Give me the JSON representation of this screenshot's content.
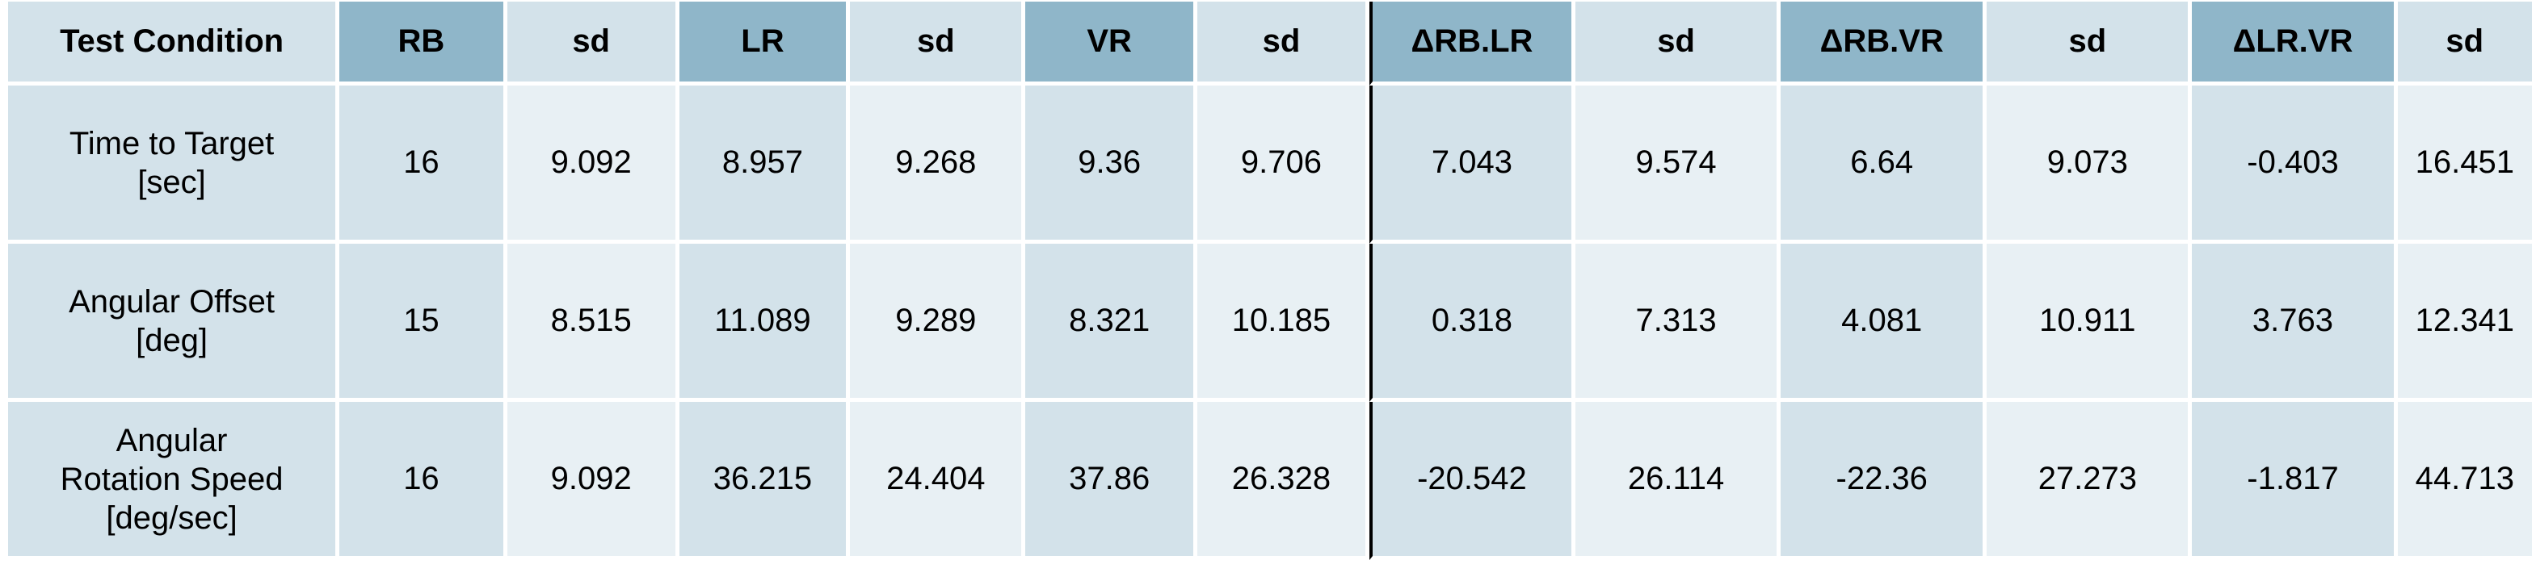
{
  "table": {
    "headers": [
      "Test Condition",
      "RB",
      "sd",
      "LR",
      "sd",
      "VR",
      "sd",
      "ΔRB.LR",
      "sd",
      "ΔRB.VR",
      "sd",
      "ΔLR.VR",
      "sd"
    ],
    "rows": [
      {
        "condition_line1": "Time to Target",
        "condition_line2": "[sec]",
        "condition_line3": "",
        "values": [
          "16",
          "9.092",
          "8.957",
          "9.268",
          "9.36",
          "9.706",
          "7.043",
          "9.574",
          "6.64",
          "9.073",
          "-0.403",
          "16.451"
        ]
      },
      {
        "condition_line1": "Angular Offset",
        "condition_line2": "[deg]",
        "condition_line3": "",
        "values": [
          "15",
          "8.515",
          "11.089",
          "9.289",
          "8.321",
          "10.185",
          "0.318",
          "7.313",
          "4.081",
          "10.911",
          "3.763",
          "12.341"
        ]
      },
      {
        "condition_line1": "Angular",
        "condition_line2": "Rotation Speed",
        "condition_line3": "[deg/sec]",
        "values": [
          "16",
          "9.092",
          "36.215",
          "24.404",
          "37.86",
          "26.328",
          "-20.542",
          "26.114",
          "-22.36",
          "27.273",
          "-1.817",
          "44.713"
        ]
      }
    ]
  },
  "colors": {
    "header_accent": "#8fb6c9",
    "cell_dark": "#d3e2ea",
    "cell_light": "#e8f0f4",
    "separator": "#000000"
  }
}
